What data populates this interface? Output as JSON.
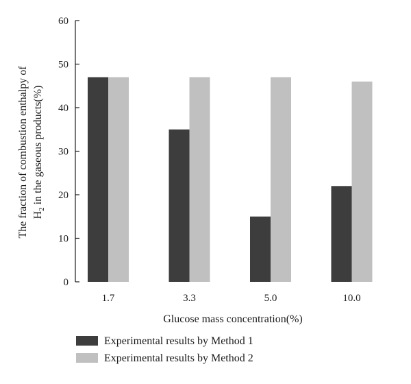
{
  "chart_data": {
    "type": "bar",
    "categories": [
      "1.7",
      "3.3",
      "5.0",
      "10.0"
    ],
    "series": [
      {
        "name": "Experimental results by Method 1",
        "values": [
          47,
          35,
          15,
          22
        ]
      },
      {
        "name": "Experimental results by Method 2",
        "values": [
          47,
          47,
          47,
          46
        ]
      }
    ],
    "xlabel": "Glucose mass concentration(%)",
    "ylabel_line1": "The fraction of combustion enthalpy of",
    "ylabel_line2_prefix": "H",
    "ylabel_line2_subscript": "2",
    "ylabel_line2_suffix": " in the gaseous products(%)",
    "ylim": [
      0,
      60
    ],
    "yticks": [
      0,
      10,
      20,
      30,
      40,
      50,
      60
    ],
    "grid": false,
    "legend_position": "bottom",
    "colors": {
      "method1": "#3d3d3d",
      "method2": "#c0c0c0",
      "axis": "#1a1a1a"
    }
  }
}
